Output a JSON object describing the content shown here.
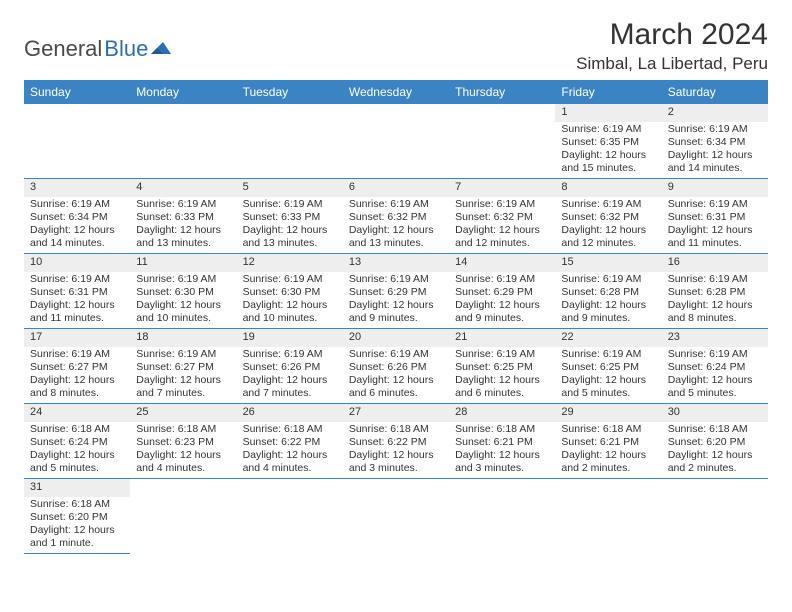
{
  "colors": {
    "header_bg": "#3b84c4",
    "header_text": "#ffffff",
    "daynum_bg": "#eeeeee",
    "border": "#3b84c4",
    "text": "#333333",
    "logo_gray": "#4a4a4a",
    "logo_blue": "#2b6fb3"
  },
  "logo": {
    "part1": "General",
    "part2": "Blue"
  },
  "title": "March 2024",
  "location": "Simbal, La Libertad, Peru",
  "weekdays": [
    "Sunday",
    "Monday",
    "Tuesday",
    "Wednesday",
    "Thursday",
    "Friday",
    "Saturday"
  ],
  "weeks": [
    [
      null,
      null,
      null,
      null,
      null,
      {
        "n": "1",
        "sr": "Sunrise: 6:19 AM",
        "ss": "Sunset: 6:35 PM",
        "dl": "Daylight: 12 hours and 15 minutes."
      },
      {
        "n": "2",
        "sr": "Sunrise: 6:19 AM",
        "ss": "Sunset: 6:34 PM",
        "dl": "Daylight: 12 hours and 14 minutes."
      }
    ],
    [
      {
        "n": "3",
        "sr": "Sunrise: 6:19 AM",
        "ss": "Sunset: 6:34 PM",
        "dl": "Daylight: 12 hours and 14 minutes."
      },
      {
        "n": "4",
        "sr": "Sunrise: 6:19 AM",
        "ss": "Sunset: 6:33 PM",
        "dl": "Daylight: 12 hours and 13 minutes."
      },
      {
        "n": "5",
        "sr": "Sunrise: 6:19 AM",
        "ss": "Sunset: 6:33 PM",
        "dl": "Daylight: 12 hours and 13 minutes."
      },
      {
        "n": "6",
        "sr": "Sunrise: 6:19 AM",
        "ss": "Sunset: 6:32 PM",
        "dl": "Daylight: 12 hours and 13 minutes."
      },
      {
        "n": "7",
        "sr": "Sunrise: 6:19 AM",
        "ss": "Sunset: 6:32 PM",
        "dl": "Daylight: 12 hours and 12 minutes."
      },
      {
        "n": "8",
        "sr": "Sunrise: 6:19 AM",
        "ss": "Sunset: 6:32 PM",
        "dl": "Daylight: 12 hours and 12 minutes."
      },
      {
        "n": "9",
        "sr": "Sunrise: 6:19 AM",
        "ss": "Sunset: 6:31 PM",
        "dl": "Daylight: 12 hours and 11 minutes."
      }
    ],
    [
      {
        "n": "10",
        "sr": "Sunrise: 6:19 AM",
        "ss": "Sunset: 6:31 PM",
        "dl": "Daylight: 12 hours and 11 minutes."
      },
      {
        "n": "11",
        "sr": "Sunrise: 6:19 AM",
        "ss": "Sunset: 6:30 PM",
        "dl": "Daylight: 12 hours and 10 minutes."
      },
      {
        "n": "12",
        "sr": "Sunrise: 6:19 AM",
        "ss": "Sunset: 6:30 PM",
        "dl": "Daylight: 12 hours and 10 minutes."
      },
      {
        "n": "13",
        "sr": "Sunrise: 6:19 AM",
        "ss": "Sunset: 6:29 PM",
        "dl": "Daylight: 12 hours and 9 minutes."
      },
      {
        "n": "14",
        "sr": "Sunrise: 6:19 AM",
        "ss": "Sunset: 6:29 PM",
        "dl": "Daylight: 12 hours and 9 minutes."
      },
      {
        "n": "15",
        "sr": "Sunrise: 6:19 AM",
        "ss": "Sunset: 6:28 PM",
        "dl": "Daylight: 12 hours and 9 minutes."
      },
      {
        "n": "16",
        "sr": "Sunrise: 6:19 AM",
        "ss": "Sunset: 6:28 PM",
        "dl": "Daylight: 12 hours and 8 minutes."
      }
    ],
    [
      {
        "n": "17",
        "sr": "Sunrise: 6:19 AM",
        "ss": "Sunset: 6:27 PM",
        "dl": "Daylight: 12 hours and 8 minutes."
      },
      {
        "n": "18",
        "sr": "Sunrise: 6:19 AM",
        "ss": "Sunset: 6:27 PM",
        "dl": "Daylight: 12 hours and 7 minutes."
      },
      {
        "n": "19",
        "sr": "Sunrise: 6:19 AM",
        "ss": "Sunset: 6:26 PM",
        "dl": "Daylight: 12 hours and 7 minutes."
      },
      {
        "n": "20",
        "sr": "Sunrise: 6:19 AM",
        "ss": "Sunset: 6:26 PM",
        "dl": "Daylight: 12 hours and 6 minutes."
      },
      {
        "n": "21",
        "sr": "Sunrise: 6:19 AM",
        "ss": "Sunset: 6:25 PM",
        "dl": "Daylight: 12 hours and 6 minutes."
      },
      {
        "n": "22",
        "sr": "Sunrise: 6:19 AM",
        "ss": "Sunset: 6:25 PM",
        "dl": "Daylight: 12 hours and 5 minutes."
      },
      {
        "n": "23",
        "sr": "Sunrise: 6:19 AM",
        "ss": "Sunset: 6:24 PM",
        "dl": "Daylight: 12 hours and 5 minutes."
      }
    ],
    [
      {
        "n": "24",
        "sr": "Sunrise: 6:18 AM",
        "ss": "Sunset: 6:24 PM",
        "dl": "Daylight: 12 hours and 5 minutes."
      },
      {
        "n": "25",
        "sr": "Sunrise: 6:18 AM",
        "ss": "Sunset: 6:23 PM",
        "dl": "Daylight: 12 hours and 4 minutes."
      },
      {
        "n": "26",
        "sr": "Sunrise: 6:18 AM",
        "ss": "Sunset: 6:22 PM",
        "dl": "Daylight: 12 hours and 4 minutes."
      },
      {
        "n": "27",
        "sr": "Sunrise: 6:18 AM",
        "ss": "Sunset: 6:22 PM",
        "dl": "Daylight: 12 hours and 3 minutes."
      },
      {
        "n": "28",
        "sr": "Sunrise: 6:18 AM",
        "ss": "Sunset: 6:21 PM",
        "dl": "Daylight: 12 hours and 3 minutes."
      },
      {
        "n": "29",
        "sr": "Sunrise: 6:18 AM",
        "ss": "Sunset: 6:21 PM",
        "dl": "Daylight: 12 hours and 2 minutes."
      },
      {
        "n": "30",
        "sr": "Sunrise: 6:18 AM",
        "ss": "Sunset: 6:20 PM",
        "dl": "Daylight: 12 hours and 2 minutes."
      }
    ],
    [
      {
        "n": "31",
        "sr": "Sunrise: 6:18 AM",
        "ss": "Sunset: 6:20 PM",
        "dl": "Daylight: 12 hours and 1 minute."
      },
      null,
      null,
      null,
      null,
      null,
      null
    ]
  ]
}
